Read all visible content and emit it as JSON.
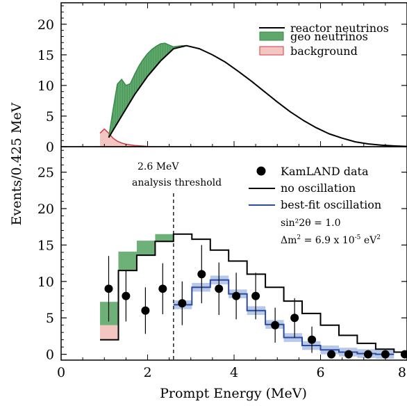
{
  "figure": {
    "xlabel": "Prompt Energy (MeV)",
    "ylabel": "Events/0.425 MeV"
  },
  "chart_data": [
    {
      "type": "area",
      "xlim": [
        0,
        8
      ],
      "ylim": [
        0,
        23.5
      ],
      "xticks": [
        "0",
        "2",
        "4",
        "6",
        "8"
      ],
      "yticks": [
        "0",
        "5",
        "10",
        "15",
        "20"
      ],
      "legend": {
        "placement": "top-right",
        "entries": [
          "reactor neutrinos",
          "geo neutrinos",
          "background"
        ]
      },
      "series": [
        {
          "name": "reactor neutrinos",
          "color": "#000000",
          "x": [
            1.1,
            1.4,
            1.7,
            2.0,
            2.3,
            2.6,
            2.9,
            3.2,
            3.5,
            3.8,
            4.1,
            4.4,
            4.7,
            5.0,
            5.3,
            5.6,
            5.9,
            6.2,
            6.5,
            6.8,
            7.1,
            7.4,
            7.7,
            8.0
          ],
          "y": [
            1.5,
            5.0,
            8.5,
            11.5,
            14.0,
            16.0,
            16.5,
            16.0,
            15.0,
            13.8,
            12.3,
            10.7,
            9.0,
            7.3,
            5.7,
            4.3,
            3.1,
            2.1,
            1.4,
            0.8,
            0.45,
            0.25,
            0.12,
            0.05
          ]
        },
        {
          "name": "geo neutrinos",
          "color": "#3a8a4a",
          "fill": "#5da86a",
          "x": [
            1.1,
            1.2,
            1.3,
            1.4,
            1.5,
            1.6,
            1.7,
            1.8,
            1.9,
            2.0,
            2.1,
            2.2,
            2.3,
            2.4,
            2.5,
            2.6,
            2.7,
            2.8,
            2.9
          ],
          "y": [
            1.5,
            6.0,
            10.2,
            11.0,
            10.0,
            10.3,
            11.8,
            13.2,
            14.3,
            15.2,
            15.9,
            16.4,
            16.8,
            16.9,
            16.6,
            16.3,
            16.4,
            16.5,
            16.5
          ]
        },
        {
          "name": "background",
          "color": "#d03a45",
          "fill": "#f4c6c2",
          "x": [
            0.9,
            1.0,
            1.1,
            1.2,
            1.3,
            1.4,
            1.5,
            1.6,
            1.7,
            1.8,
            1.9,
            2.0
          ],
          "y": [
            2.2,
            2.9,
            2.2,
            1.4,
            0.9,
            0.6,
            0.4,
            0.3,
            0.2,
            0.15,
            0.1,
            0.05
          ]
        }
      ]
    },
    {
      "type": "scatter",
      "xlim": [
        0,
        8
      ],
      "ylim": [
        -0.8,
        28.5
      ],
      "xticks": [
        "0",
        "2",
        "4",
        "6",
        "8"
      ],
      "yticks": [
        "0",
        "5",
        "10",
        "15",
        "20",
        "25"
      ],
      "legend": {
        "placement": "top-right",
        "entries": [
          "KamLAND data",
          "no oscillation",
          "best-fit oscillation"
        ]
      },
      "annotation": {
        "line1": "2.6 MeV",
        "line2": "analysis threshold",
        "threshold_x": 2.6
      },
      "params": {
        "mixing": "sin²2θ = 1.0",
        "dm_prefix": "Δm",
        "dm_mid": " = 6.9 x 10",
        "dm_exp": "-5",
        "dm_unit": " eV",
        "dm_unit_exp": "2",
        "dm_sup2": "2"
      },
      "bin_edges": [
        0.9,
        1.325,
        1.75,
        2.175,
        2.6,
        3.025,
        3.45,
        3.875,
        4.3,
        4.725,
        5.15,
        5.575,
        6.0,
        6.425,
        6.85,
        7.275,
        7.7,
        8.0
      ],
      "series": [
        {
          "name": "KamLAND data",
          "color": "#000000",
          "x": [
            1.1,
            1.5,
            1.95,
            2.35,
            2.8,
            3.25,
            3.65,
            4.05,
            4.5,
            4.95,
            5.4,
            5.8,
            6.25,
            6.65,
            7.1,
            7.5,
            7.95
          ],
          "y": [
            9,
            8,
            6,
            9,
            7,
            11,
            9,
            8,
            8,
            4,
            5,
            2,
            0,
            0,
            0,
            0,
            0
          ],
          "err": [
            4.5,
            3.5,
            3.2,
            3.5,
            3.0,
            4.0,
            3.6,
            3.2,
            3.2,
            2.4,
            2.7,
            1.8,
            0,
            0,
            0,
            0,
            0
          ]
        },
        {
          "name": "no oscillation",
          "color": "#000000",
          "y": [
            2.0,
            11.5,
            13.6,
            15.5,
            16.5,
            15.8,
            14.3,
            12.8,
            11.0,
            9.2,
            7.3,
            5.6,
            4.0,
            2.6,
            1.5,
            0.7,
            0.3
          ]
        },
        {
          "name": "best-fit oscillation",
          "color": "#2a4ba0",
          "band": "#b8c8e8",
          "band_halfwidth": 0.6,
          "y": [
            null,
            null,
            null,
            null,
            6.8,
            9.2,
            10.2,
            8.3,
            6.0,
            4.1,
            2.3,
            1.2,
            0.6,
            0.3,
            0.1,
            0.0,
            null
          ]
        },
        {
          "name": "geo neutrinos",
          "color": "#5da86a",
          "y": [
            3.2,
            2.6,
            2.0,
            1.0,
            null,
            null,
            null,
            null,
            null,
            null,
            null,
            null,
            null,
            null,
            null,
            null,
            null
          ]
        },
        {
          "name": "background",
          "color": "#f4c6c2",
          "y": [
            2.0,
            0,
            0,
            0,
            null,
            null,
            null,
            null,
            null,
            null,
            null,
            null,
            null,
            null,
            null,
            null,
            null
          ]
        }
      ]
    }
  ]
}
